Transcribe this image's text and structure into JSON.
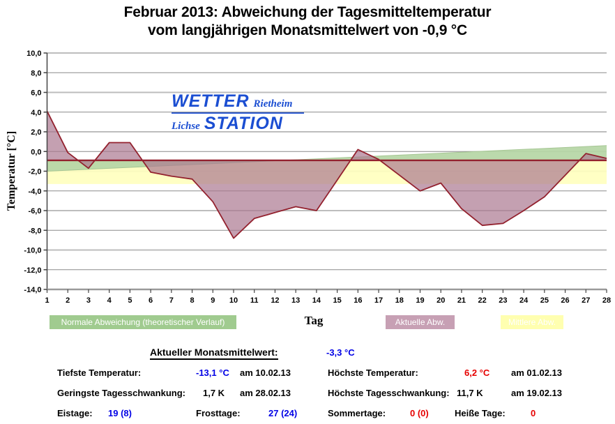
{
  "chart_data": {
    "type": "area",
    "title": "Februar 2013: Abweichung der Tagesmitteltemperatur vom langjährigen Monatsmittelwert von -0,9 °C",
    "title_lines": [
      "Februar 2013: Abweichung der Tagesmitteltemperatur",
      "vom langjährigen Monatsmittelwert von -0,9 °C"
    ],
    "xlabel": "Tag",
    "ylabel": "Temperatur [°C]",
    "ylim": [
      -14,
      10
    ],
    "ytick_step": 2,
    "grid": true,
    "legend_position": "bottom",
    "ytick_labels": [
      "10,0",
      "8,0",
      "6,0",
      "4,0",
      "2,0",
      "0,0",
      "-2,0",
      "-4,0",
      "-6,0",
      "-8,0",
      "-10,0",
      "-12,0",
      "-14,0"
    ],
    "x": [
      1,
      2,
      3,
      4,
      5,
      6,
      7,
      8,
      9,
      10,
      11,
      12,
      13,
      14,
      15,
      16,
      17,
      18,
      19,
      20,
      21,
      22,
      23,
      24,
      25,
      26,
      27,
      28
    ],
    "series": [
      {
        "name": "Aktuelle Abw.",
        "color": "#ab7890",
        "line_color": "#93212e",
        "values": [
          4.1,
          -0.1,
          -1.7,
          0.9,
          0.9,
          -2.1,
          -2.5,
          -2.8,
          -5.1,
          -8.8,
          -6.8,
          -6.2,
          -5.6,
          -6.0,
          -2.9,
          0.2,
          -0.8,
          -2.4,
          -4.0,
          -3.2,
          -5.8,
          -7.5,
          -7.3,
          -6.0,
          -4.6,
          -2.4,
          -0.2,
          -0.7
        ]
      }
    ],
    "baseline": {
      "value": -0.9,
      "color": "#93212e"
    },
    "bands": {
      "normal": {
        "name": "Normale Abweichung (theoretischer Verlauf)",
        "start_value": -2.0,
        "end_value": 0.6,
        "color": "#b5d6a5"
      },
      "mean": {
        "name": "Mittlere Abw.",
        "from": -0.9,
        "to": -3.3,
        "color": "#ffffbe"
      }
    }
  },
  "logo": {
    "word1": "WETTER",
    "word2": "Rietheim",
    "word3": "Lichse",
    "word4": "STATION",
    "color": "#1b4ed2"
  },
  "legend": {
    "normal_bg": "#a0cb8f",
    "actual_bg": "#c7a0b4",
    "mean_bg": "#ffffb0"
  },
  "stats": {
    "monthly_mean": {
      "label": "Aktueller Monatsmittelwert:",
      "value": "-3,3 °C",
      "value_color": "#0000e6"
    },
    "rows": [
      {
        "label": "Tiefste Temperatur:",
        "value": "-13,1 °C",
        "value_color": "#0000e6",
        "date": "am 10.02.13"
      },
      {
        "label": "Geringste Tagesschwankung:",
        "value": "1,7 K",
        "value_color": "#000000",
        "date": "am 28.02.13"
      },
      {
        "label": "Höchste Temperatur:",
        "value": "6,2 °C",
        "value_color": "#e60000",
        "date": "am 01.02.13"
      },
      {
        "label": "Höchste Tagesschwankung:",
        "value": "11,7 K",
        "value_color": "#000000",
        "date": "am 19.02.13"
      }
    ],
    "day_counts": [
      {
        "label": "Eistage:",
        "value": "19 (8)",
        "color": "#0000e6"
      },
      {
        "label": "Frosttage:",
        "value": "27 (24)",
        "color": "#0000e6"
      },
      {
        "label": "Sommertage:",
        "value": "0 (0)",
        "color": "#e60000"
      },
      {
        "label": "Heiße Tage:",
        "value": "0",
        "color": "#e60000"
      }
    ]
  }
}
